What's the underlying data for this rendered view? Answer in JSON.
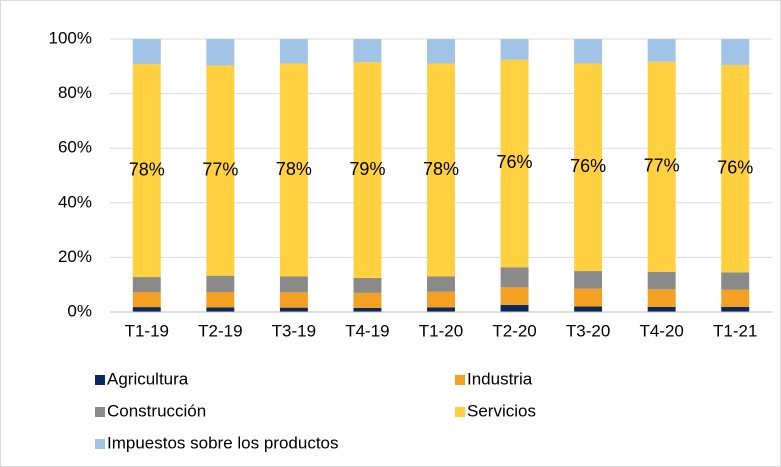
{
  "chart_data": {
    "type": "stacked_bar",
    "categories": [
      "T1-19",
      "T2-19",
      "T3-19",
      "T4-19",
      "T1-20",
      "T2-20",
      "T3-20",
      "T4-20",
      "T1-21"
    ],
    "series": [
      {
        "name": "Agricultura",
        "color": "#0b2a5b",
        "values": [
          1.8,
          1.7,
          1.6,
          1.5,
          1.7,
          2.6,
          2.0,
          1.9,
          1.9
        ]
      },
      {
        "name": "Industria",
        "color": "#f4a023",
        "values": [
          5.5,
          5.6,
          5.6,
          5.5,
          5.7,
          6.5,
          6.5,
          6.4,
          6.3
        ]
      },
      {
        "name": "Construcción",
        "color": "#8a8a8a",
        "values": [
          5.5,
          6.0,
          5.8,
          5.5,
          5.6,
          7.3,
          6.5,
          6.4,
          6.3
        ]
      },
      {
        "name": "Servicios",
        "color": "#ffd040",
        "values": [
          78,
          77,
          78,
          79,
          78,
          76,
          76,
          77,
          76
        ],
        "value_labels": [
          "78%",
          "77%",
          "78%",
          "79%",
          "78%",
          "76%",
          "76%",
          "77%",
          "76%"
        ]
      },
      {
        "name": "Impuestos sobre los productos",
        "color": "#a0c3e6",
        "values": [
          9.2,
          9.7,
          9.0,
          8.5,
          9.0,
          7.6,
          9.0,
          8.3,
          9.5
        ]
      }
    ],
    "ylim": [
      0,
      100
    ],
    "yticks": [
      {
        "value": 0,
        "label": "0%"
      },
      {
        "value": 20,
        "label": "20%"
      },
      {
        "value": 40,
        "label": "40%"
      },
      {
        "value": 60,
        "label": "60%"
      },
      {
        "value": 80,
        "label": "80%"
      },
      {
        "value": 100,
        "label": "100%"
      }
    ],
    "grid": true
  }
}
